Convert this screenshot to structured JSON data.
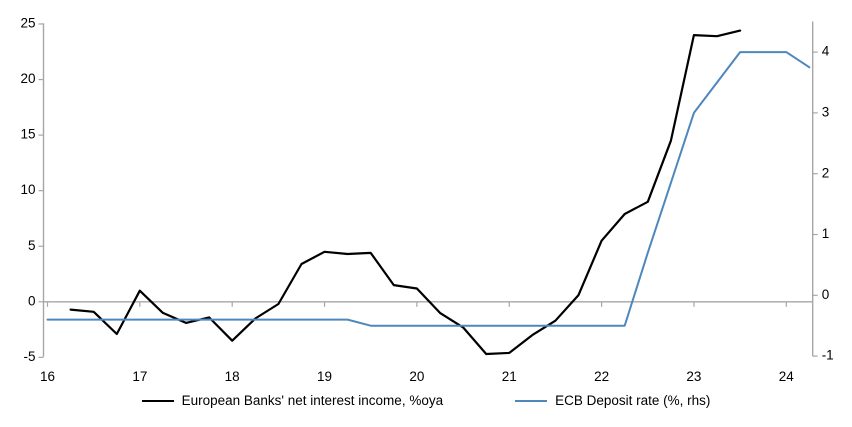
{
  "chart_data": {
    "type": "line",
    "title": "",
    "xlabel": "",
    "ylabel_left": "",
    "ylabel_right": "",
    "x_tick_labels": [
      "16",
      "17",
      "18",
      "19",
      "20",
      "21",
      "22",
      "23",
      "24"
    ],
    "x_tick_years": [
      16,
      17,
      18,
      19,
      20,
      21,
      22,
      23,
      24
    ],
    "left_axis": {
      "ticks": [
        25,
        20,
        15,
        10,
        5,
        0,
        -5
      ],
      "min": -5,
      "max": 25
    },
    "right_axis": {
      "ticks": [
        4,
        3,
        2,
        1,
        0,
        -1
      ],
      "min": -1,
      "max": 4.5
    },
    "grid": "zero-line-only",
    "legend_position": "bottom-center",
    "series": [
      {
        "name": "European Banks' net interest income, %oya",
        "axis": "left",
        "color": "#000000",
        "width": 2.2,
        "x": [
          16.25,
          16.5,
          16.75,
          17.0,
          17.25,
          17.5,
          17.75,
          18.0,
          18.25,
          18.5,
          18.75,
          19.0,
          19.25,
          19.5,
          19.75,
          20.0,
          20.25,
          20.5,
          20.75,
          21.0,
          21.25,
          21.5,
          21.75,
          22.0,
          22.25,
          22.5,
          22.75,
          23.0,
          23.25,
          23.5
        ],
        "values": [
          -0.7,
          -0.9,
          -2.9,
          1.0,
          -1.0,
          -1.9,
          -1.4,
          -3.5,
          -1.5,
          -0.2,
          3.4,
          4.5,
          4.3,
          4.4,
          1.5,
          1.2,
          -1.0,
          -2.3,
          -4.7,
          -4.6,
          -3.0,
          -1.7,
          0.6,
          5.5,
          7.9,
          9.0,
          14.5,
          24.0,
          23.9,
          24.4
        ]
      },
      {
        "name": "ECB Deposit rate (%, rhs)",
        "axis": "right",
        "color": "#4e87bc",
        "width": 2,
        "x": [
          16.0,
          16.25,
          16.5,
          16.75,
          17.0,
          17.25,
          17.5,
          17.75,
          18.0,
          18.25,
          18.5,
          18.75,
          19.0,
          19.25,
          19.5,
          19.75,
          20.0,
          20.25,
          20.5,
          20.75,
          21.0,
          21.25,
          21.5,
          21.75,
          22.0,
          22.25,
          22.5,
          22.75,
          23.0,
          23.25,
          23.5,
          23.75,
          24.0,
          24.25
        ],
        "values": [
          -0.4,
          -0.4,
          -0.4,
          -0.4,
          -0.4,
          -0.4,
          -0.4,
          -0.4,
          -0.4,
          -0.4,
          -0.4,
          -0.4,
          -0.4,
          -0.4,
          -0.5,
          -0.5,
          -0.5,
          -0.5,
          -0.5,
          -0.5,
          -0.5,
          -0.5,
          -0.5,
          -0.5,
          -0.5,
          -0.5,
          0.7,
          1.85,
          3.0,
          3.5,
          4.0,
          4.0,
          4.0,
          3.75
        ]
      }
    ],
    "colors": {
      "axis_line": "#a6a6a6",
      "zero_gridline": "#a6a6a6",
      "tick_label": "#000000",
      "background": "#ffffff"
    }
  }
}
